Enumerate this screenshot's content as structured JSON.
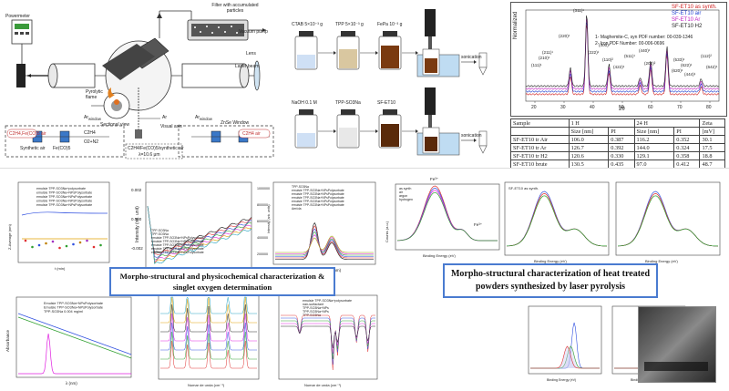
{
  "apparatus": {
    "powermeter": "Powermeter",
    "filter": "Filter with accumulated\nparticles",
    "vacuum_pump": "Vacuum pump",
    "lens": "Lens",
    "laser_beam": "Laser beam",
    "pyrolytic_flame": "Pyrolytic\nflame",
    "sectional_view": "Sectional view",
    "visual_axis": "Visual axis",
    "ar": "Ar",
    "ar_window_left": "Ar",
    "ar_window_right": "Ar",
    "window_sub": "window",
    "znse_window": "ZnSe Window",
    "mix_label": "C2H4/Fe(CO)5/synthetic air",
    "lambda_label": "λ=10.6 μm",
    "left_box": "C2H4,Fe(CO)5 air",
    "right_box": "C2H4 air",
    "left_flow": "C2H4",
    "left_flow2": "O2+N2",
    "feco": "Fe(CO)5",
    "synth_air": "Synthetic air"
  },
  "synthesis": {
    "row1": [
      "CTAB 5×10⁻³ g",
      "TPP 5×10⁻³ g",
      "FePa 10⁻³ g"
    ],
    "row2": [
      "NaOH 0.1 M",
      "TPP-SO3Na",
      "SF-ET10"
    ],
    "sonication": "sonication"
  },
  "xrd": {
    "legend": [
      "SF-ET10 as synth.",
      "SF-ET10 air",
      "SF-ET10 Ar",
      "SF-ET10 H2"
    ],
    "legend_colors": [
      "#d02020",
      "#2040d0",
      "#c020c0",
      "#222222"
    ],
    "pdf1": "1- Maghemite-C, syn PDF number: 00-039-1346",
    "pdf2": "2- Iron PDF Number: 00-006-0696",
    "peaks": [
      "(111)¹",
      "(210)¹",
      "(211)¹",
      "(220)¹",
      "(311)¹",
      "(222)¹",
      "(400)¹",
      "(110)²",
      "(422)¹",
      "(511)¹",
      "(440)¹",
      "(200)²",
      "(620)¹",
      "(533)¹",
      "(622)¹",
      "(444)¹",
      "(112)²",
      "(642)¹"
    ],
    "ylabel": "Normalized",
    "xlabel": "2θ",
    "xticks": [
      "20",
      "30",
      "40",
      "50",
      "60",
      "70",
      "80"
    ]
  },
  "table": {
    "headers": [
      "Sample",
      "1 H",
      "",
      "24 H",
      "",
      "Zeta"
    ],
    "subheaders": [
      "",
      "Size [nm]",
      "PI",
      "Size [nm]",
      "PI",
      "[mV]"
    ],
    "rows": [
      [
        "SF-ET10 tr Air",
        "106.0",
        "0.387",
        "116.2",
        "0.352",
        "30.1"
      ],
      [
        "SF-ET10 tr Ar",
        "126.7",
        "0.392",
        "144.0",
        "0.324",
        "17.5"
      ],
      [
        "SF-ET10 tr H2",
        "120.6",
        "0.330",
        "129.1",
        "0.358",
        "18.8"
      ],
      [
        "SF-ET10 brute",
        "130.5",
        "0.435",
        "97.0",
        "0.412",
        "48.7"
      ]
    ]
  },
  "captions": {
    "left": "Morpho-structural and physicochemical characterization & singlet oxygen determination",
    "right": "Morpho-structural characterization of heat treated powders synthesized by laser pyrolysis"
  },
  "plots": {
    "zavg_ylabel": "Z-Average (nm)",
    "zavg_xlabel": "t (min)",
    "intensity_ylabel": "Intensity (rel. unit)",
    "intensity_yticks": [
      "0.002",
      "0.000",
      "-0.002"
    ],
    "fluor_ylabel": "Intensity (arb. units)",
    "fluor_xlabel": "Wavelength (nm)",
    "fluor_yticks": [
      "1000000",
      "800000",
      "600000",
      "400000",
      "200000"
    ],
    "abs_ylabel": "Absorbance",
    "abs_xlabel": "λ (nm)",
    "abs_legend": [
      "Emulsie TPP-SO3Na+NPsPolysorbate",
      "Emulsie TPP-SO3Na+NPsPolysorbate",
      "TPP-SO3Na 0.004 mg/ml"
    ],
    "ftir1_title": "Emulsie TPP-SO3Na+NPsPolysorbate",
    "ftir_xlabel": "Numar de unda (cm⁻¹)",
    "ftir2_legend": [
      "emulsie TPP-SO3Na+polysorbate",
      "nan-surfactant",
      "TPP-SO3Na+NPs",
      "TPP-SO3Na+NPs",
      "TPP-SO3Na"
    ],
    "xps_ylabel": "Counts (a.u.)",
    "xps_xlabel": "Binding Energy (eV)",
    "xps_peak": "Fe³⁺",
    "xps_legend": [
      "as synth",
      "air",
      "argon",
      "hydrogen"
    ],
    "xps2_title": "SF-ET10 as synth."
  },
  "zavg_legend": [
    "emulsie TPP-SO3Na+polysorbate",
    "emulsie TPP-SO3Na+NPsPolysorbate",
    "emulsie TPP-SO3Na+NPsPolysorbate",
    "emulsie TPP-SO3Na+NPsPolysorbate",
    "emulsie TPP-SO3Na+NPsPolysorbate"
  ],
  "intensity_legend": [
    "TPP-SO3Na",
    "TPP-SO3Na",
    "emulsie TPP-SO3Na+NPsPolysorbate",
    "emulsie TPP-SO3Na+NPsPolysorbate",
    "emulsie TPP-SO3Na+NPsPolysorbate",
    "emulsie TPP-SO3Na+NPsPolysorbate",
    "emulsie TPP-SO3Na+NPsPolysorbate"
  ],
  "fluor_legend": [
    "TPP-SO3Na",
    "emulsie TPP-SO3Na+NPsPolysorbate",
    "emulsie TPP-SO3Na+NPsPolysorbate",
    "emulsie TPP-SO3Na+NPsPolysorbate",
    "emulsie TPP-SO3Na+NPsPolysorbate",
    "emulsie TPP-SO3Na+NPsPolysorbate",
    "Aer/cla"
  ]
}
